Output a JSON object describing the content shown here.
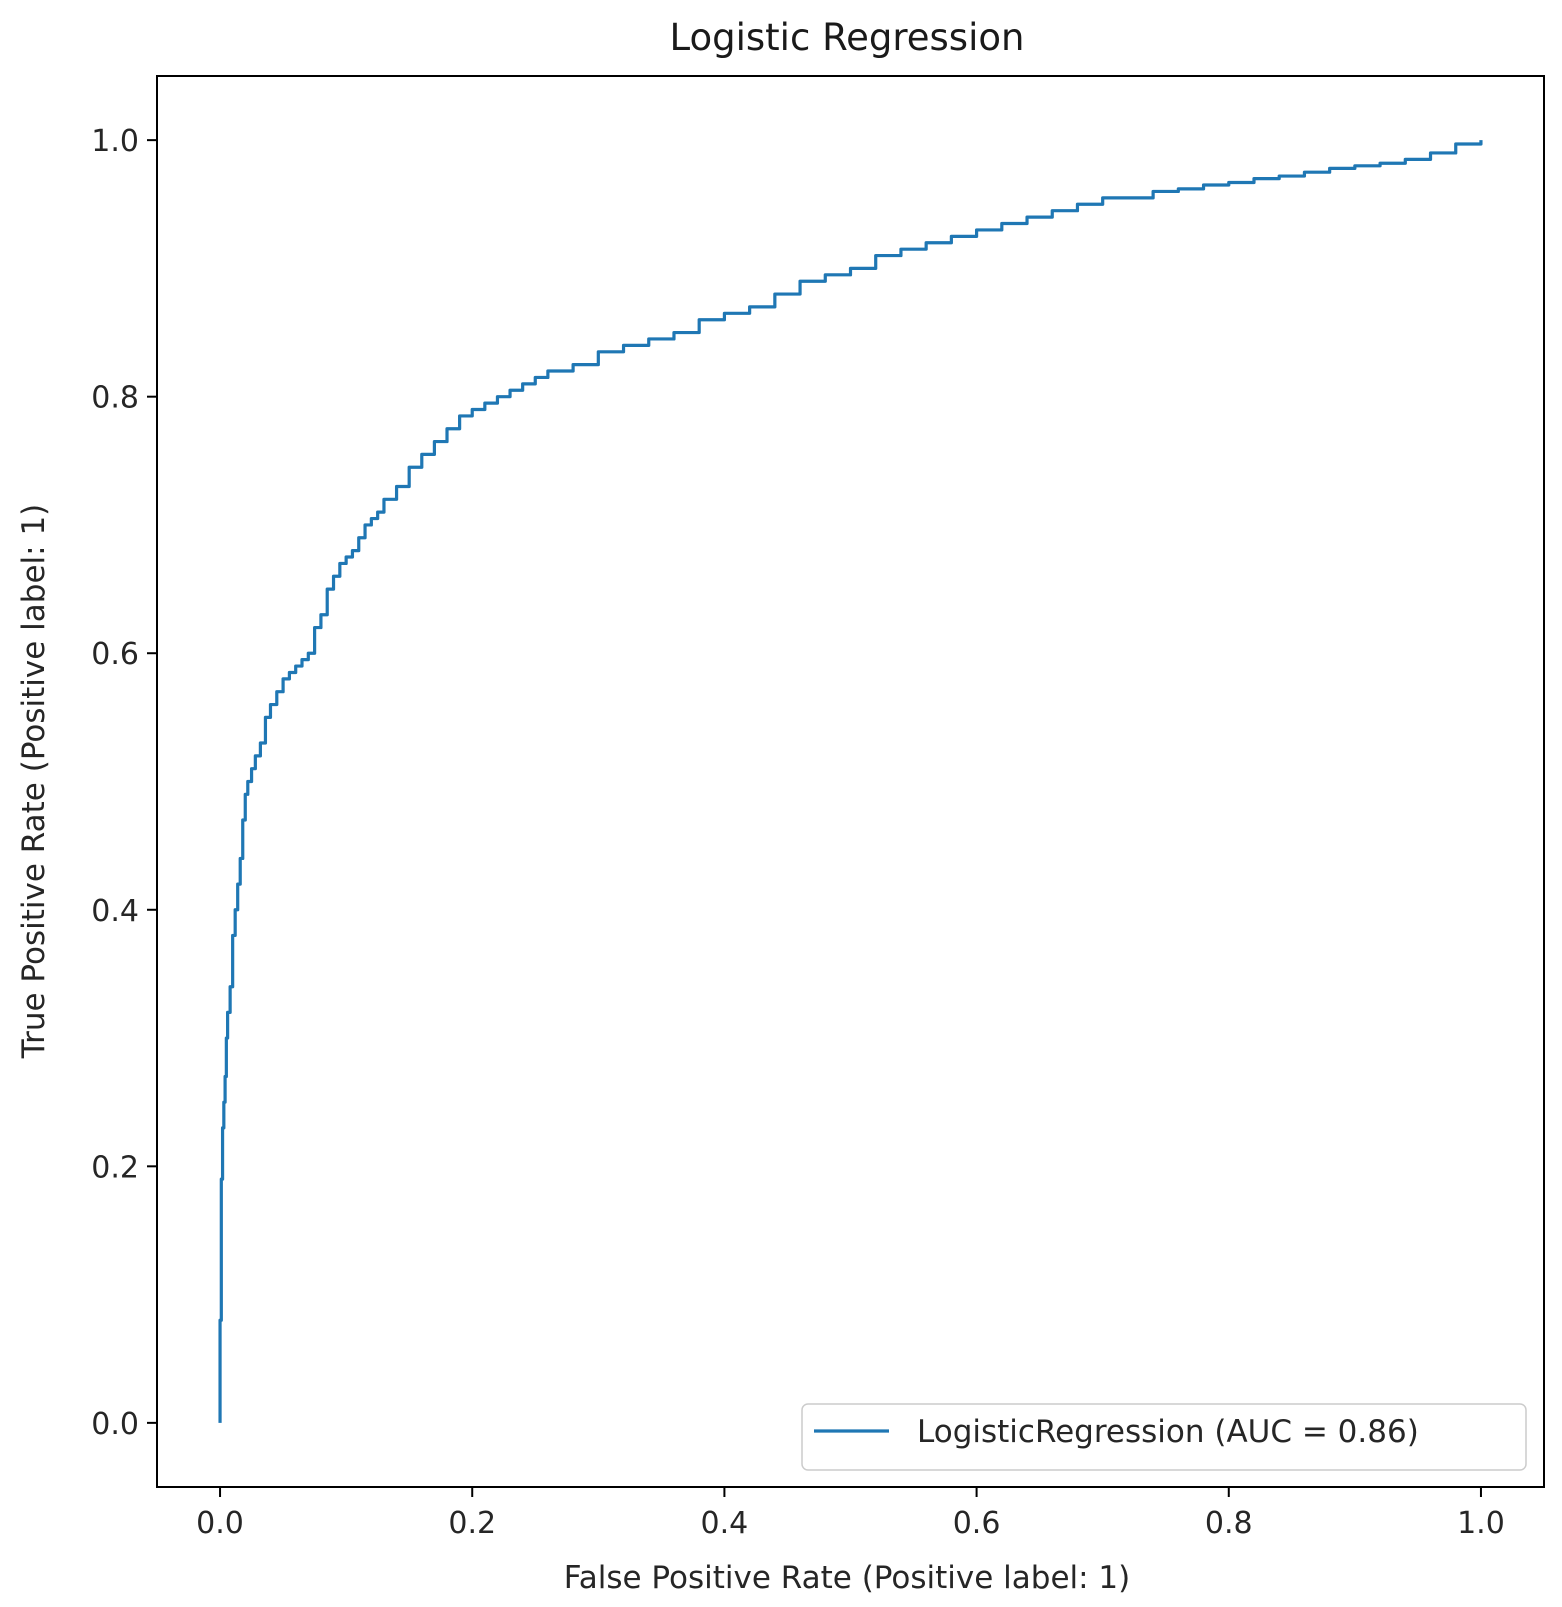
{
  "chart_data": {
    "type": "line",
    "title": "Logistic Regression",
    "xlabel": "False Positive Rate (Positive label: 1)",
    "ylabel": "True Positive Rate (Positive label: 1)",
    "xlim": [
      -0.05,
      1.05
    ],
    "ylim": [
      -0.05,
      1.05
    ],
    "xticks": [
      0.0,
      0.2,
      0.4,
      0.6,
      0.8,
      1.0
    ],
    "yticks": [
      0.0,
      0.2,
      0.4,
      0.6,
      0.8,
      1.0
    ],
    "xtick_labels": [
      "0.0",
      "0.2",
      "0.4",
      "0.6",
      "0.8",
      "1.0"
    ],
    "ytick_labels": [
      "0.0",
      "0.2",
      "0.4",
      "0.6",
      "0.8",
      "1.0"
    ],
    "grid": false,
    "legend_position": "lower-right",
    "series": [
      {
        "name": "LogisticRegression (AUC = 0.86)",
        "color": "#1f77b4",
        "x": [
          0.0,
          0.0,
          0.001,
          0.001,
          0.002,
          0.003,
          0.004,
          0.005,
          0.006,
          0.008,
          0.01,
          0.012,
          0.014,
          0.016,
          0.018,
          0.02,
          0.022,
          0.025,
          0.028,
          0.032,
          0.036,
          0.04,
          0.045,
          0.05,
          0.055,
          0.06,
          0.065,
          0.07,
          0.075,
          0.08,
          0.085,
          0.09,
          0.095,
          0.1,
          0.105,
          0.11,
          0.115,
          0.12,
          0.125,
          0.13,
          0.14,
          0.15,
          0.16,
          0.17,
          0.18,
          0.19,
          0.2,
          0.21,
          0.22,
          0.23,
          0.24,
          0.25,
          0.26,
          0.28,
          0.3,
          0.32,
          0.34,
          0.36,
          0.38,
          0.4,
          0.42,
          0.44,
          0.46,
          0.48,
          0.5,
          0.52,
          0.54,
          0.56,
          0.58,
          0.6,
          0.62,
          0.64,
          0.66,
          0.68,
          0.7,
          0.72,
          0.74,
          0.76,
          0.78,
          0.8,
          0.82,
          0.84,
          0.86,
          0.88,
          0.9,
          0.92,
          0.94,
          0.96,
          0.98,
          1.0
        ],
        "y": [
          0.0,
          0.08,
          0.15,
          0.19,
          0.23,
          0.25,
          0.27,
          0.3,
          0.32,
          0.34,
          0.38,
          0.4,
          0.42,
          0.44,
          0.47,
          0.49,
          0.5,
          0.51,
          0.52,
          0.53,
          0.55,
          0.56,
          0.57,
          0.58,
          0.585,
          0.59,
          0.595,
          0.6,
          0.62,
          0.63,
          0.65,
          0.66,
          0.67,
          0.675,
          0.68,
          0.69,
          0.7,
          0.705,
          0.71,
          0.72,
          0.73,
          0.745,
          0.755,
          0.765,
          0.775,
          0.785,
          0.79,
          0.795,
          0.8,
          0.805,
          0.81,
          0.815,
          0.82,
          0.825,
          0.835,
          0.84,
          0.845,
          0.85,
          0.86,
          0.865,
          0.87,
          0.88,
          0.89,
          0.895,
          0.9,
          0.91,
          0.915,
          0.92,
          0.925,
          0.93,
          0.935,
          0.94,
          0.945,
          0.95,
          0.955,
          0.955,
          0.96,
          0.962,
          0.965,
          0.967,
          0.97,
          0.972,
          0.975,
          0.978,
          0.98,
          0.982,
          0.985,
          0.99,
          0.997,
          1.0
        ]
      }
    ]
  }
}
